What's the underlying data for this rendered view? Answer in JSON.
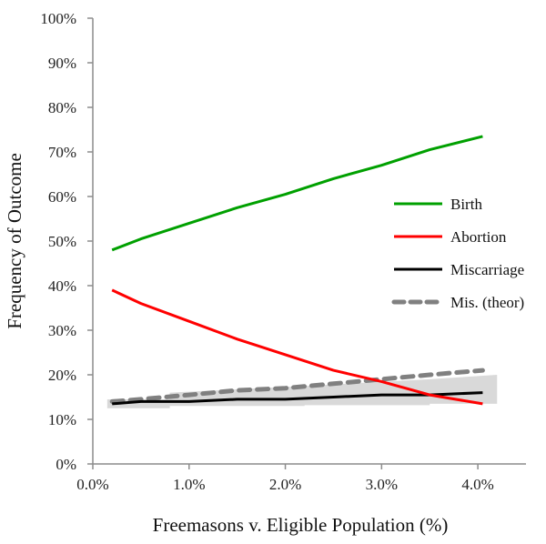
{
  "chart_data": {
    "type": "line",
    "title": "",
    "xlabel": "Freemasons v. Eligible Population (%)",
    "ylabel": "Frequency of Outcome",
    "xlim": [
      0.0,
      4.5
    ],
    "ylim": [
      0,
      100
    ],
    "x_ticks": [
      0.0,
      1.0,
      2.0,
      3.0,
      4.0
    ],
    "x_tick_labels": [
      "0.0%",
      "1.0%",
      "2.0%",
      "3.0%",
      "4.0%"
    ],
    "y_ticks": [
      0,
      10,
      20,
      30,
      40,
      50,
      60,
      70,
      80,
      90,
      100
    ],
    "y_tick_labels": [
      "0%",
      "10%",
      "20%",
      "30%",
      "40%",
      "50%",
      "60%",
      "70%",
      "80%",
      "90%",
      "100%"
    ],
    "grid": false,
    "legend_position": "right",
    "x": [
      0.2,
      0.5,
      1.0,
      1.5,
      2.0,
      2.5,
      3.0,
      3.5,
      4.05
    ],
    "series": [
      {
        "name": "Birth",
        "color": "#00a000",
        "style": "solid",
        "values": [
          48.0,
          50.5,
          54.0,
          57.5,
          60.5,
          64.0,
          67.0,
          70.5,
          73.5
        ]
      },
      {
        "name": "Abortion",
        "color": "#ff0000",
        "style": "solid",
        "values": [
          39.0,
          36.0,
          32.0,
          28.0,
          24.5,
          21.0,
          18.5,
          15.5,
          13.5
        ]
      },
      {
        "name": "Miscarriage",
        "color": "#000000",
        "style": "solid",
        "values": [
          13.5,
          14.0,
          14.0,
          14.5,
          14.5,
          15.0,
          15.5,
          15.5,
          16.0
        ]
      },
      {
        "name": "Mis. (theor)",
        "color": "#808080",
        "style": "dashed",
        "values": [
          14.0,
          14.5,
          15.5,
          16.5,
          17.0,
          18.0,
          19.0,
          20.0,
          21.0
        ]
      }
    ],
    "band": {
      "name": "Miscarriage range",
      "color": "#d9d9d9",
      "x": [
        0.15,
        0.8,
        0.8,
        2.2,
        2.2,
        3.5,
        3.5,
        4.2
      ],
      "lower": [
        12.5,
        12.5,
        13.0,
        13.0,
        13.2,
        13.2,
        13.5,
        13.5
      ],
      "upper": [
        14.5,
        14.5,
        16.0,
        17.5,
        17.5,
        19.0,
        19.0,
        20.0
      ]
    }
  }
}
